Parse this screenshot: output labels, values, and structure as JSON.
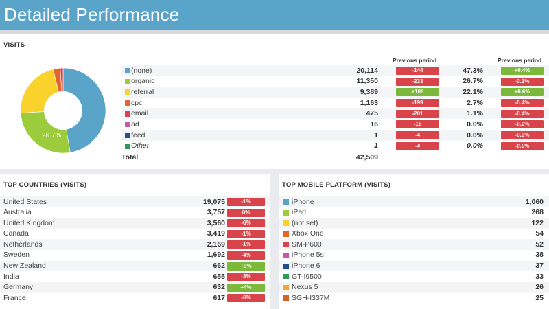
{
  "header": {
    "title": "Detailed Performance"
  },
  "visits": {
    "title": "VISITS",
    "pie_label": "26.7%",
    "col_prev1": "Previous period",
    "col_prev2": "Previous period",
    "rows": [
      {
        "name": "(none)",
        "value": "20,114",
        "delta": "-144",
        "delta_dir": "down",
        "pct": "47.3%",
        "pct_delta": "+0.4%",
        "pct_dir": "up",
        "color": "#5ba4c9",
        "share": 47.3
      },
      {
        "name": "organic",
        "value": "11,350",
        "delta": "-233",
        "delta_dir": "down",
        "pct": "26.7%",
        "pct_delta": "-0.1%",
        "pct_dir": "down",
        "color": "#9ccb3b",
        "share": 26.7
      },
      {
        "name": "referral",
        "value": "9,389",
        "delta": "+108",
        "delta_dir": "up",
        "pct": "22.1%",
        "pct_delta": "+0.6%",
        "pct_dir": "up",
        "color": "#f9d22b",
        "share": 22.1
      },
      {
        "name": "cpc",
        "value": "1,163",
        "delta": "-199",
        "delta_dir": "down",
        "pct": "2.7%",
        "pct_delta": "-0.4%",
        "pct_dir": "down",
        "color": "#e2672c",
        "share": 2.7
      },
      {
        "name": "email",
        "value": "475",
        "delta": "-201",
        "delta_dir": "down",
        "pct": "1.1%",
        "pct_delta": "-0.4%",
        "pct_dir": "down",
        "color": "#d9434a",
        "share": 1.1
      },
      {
        "name": "ad",
        "value": "16",
        "delta": "-15",
        "delta_dir": "down",
        "pct": "0.0%",
        "pct_delta": "-0.0%",
        "pct_dir": "down",
        "color": "#c45ba7",
        "share": 0
      },
      {
        "name": "feed",
        "value": "1",
        "delta": "-4",
        "delta_dir": "down",
        "pct": "0.0%",
        "pct_delta": "-0.0%",
        "pct_dir": "down",
        "color": "#1e4f8e",
        "share": 0
      },
      {
        "name": "Other",
        "value": "1",
        "delta": "-4",
        "delta_dir": "down",
        "pct": "0.0%",
        "pct_delta": "-0.0%",
        "pct_dir": "down",
        "color": "#2e9a5a",
        "share": 0,
        "italic": true
      }
    ],
    "total_label": "Total",
    "total_value": "42,509"
  },
  "countries": {
    "title": "TOP COUNTRIES (VISITS)",
    "rows": [
      {
        "name": "United States",
        "value": "19,075",
        "delta": "-1%",
        "dir": "down"
      },
      {
        "name": "Australia",
        "value": "3,757",
        "delta": "0%",
        "dir": "down"
      },
      {
        "name": "United Kingdom",
        "value": "3,560",
        "delta": "-6%",
        "dir": "down"
      },
      {
        "name": "Canada",
        "value": "3,419",
        "delta": "-1%",
        "dir": "down"
      },
      {
        "name": "Netherlands",
        "value": "2,169",
        "delta": "-1%",
        "dir": "down"
      },
      {
        "name": "Sweden",
        "value": "1,692",
        "delta": "-4%",
        "dir": "down"
      },
      {
        "name": "New Zealand",
        "value": "662",
        "delta": "+9%",
        "dir": "up"
      },
      {
        "name": "India",
        "value": "655",
        "delta": "-3%",
        "dir": "down"
      },
      {
        "name": "Germany",
        "value": "632",
        "delta": "+4%",
        "dir": "up"
      },
      {
        "name": "France",
        "value": "617",
        "delta": "-6%",
        "dir": "down"
      }
    ]
  },
  "platforms": {
    "title": "TOP MOBILE PLATFORM (VISITS)",
    "rows": [
      {
        "name": "iPhone",
        "value": "1,060",
        "color": "#5ba4c9"
      },
      {
        "name": "iPad",
        "value": "268",
        "color": "#9ccb3b"
      },
      {
        "name": "(not set)",
        "value": "122",
        "color": "#f9d22b"
      },
      {
        "name": "Xbox One",
        "value": "54",
        "color": "#e2672c"
      },
      {
        "name": "SM-P600",
        "value": "52",
        "color": "#d9434a"
      },
      {
        "name": "iPhone 5s",
        "value": "38",
        "color": "#c45ba7"
      },
      {
        "name": "iPhone 6",
        "value": "37",
        "color": "#1e4f8e"
      },
      {
        "name": "GT-I9500",
        "value": "33",
        "color": "#2e9a5a"
      },
      {
        "name": "Nexus 5",
        "value": "26",
        "color": "#f0a830"
      },
      {
        "name": "SGH-I337M",
        "value": "25",
        "color": "#d0622b"
      }
    ]
  },
  "colors": {
    "up": "#7cb83a",
    "down": "#d9434a",
    "header": "#5ba4c9"
  }
}
